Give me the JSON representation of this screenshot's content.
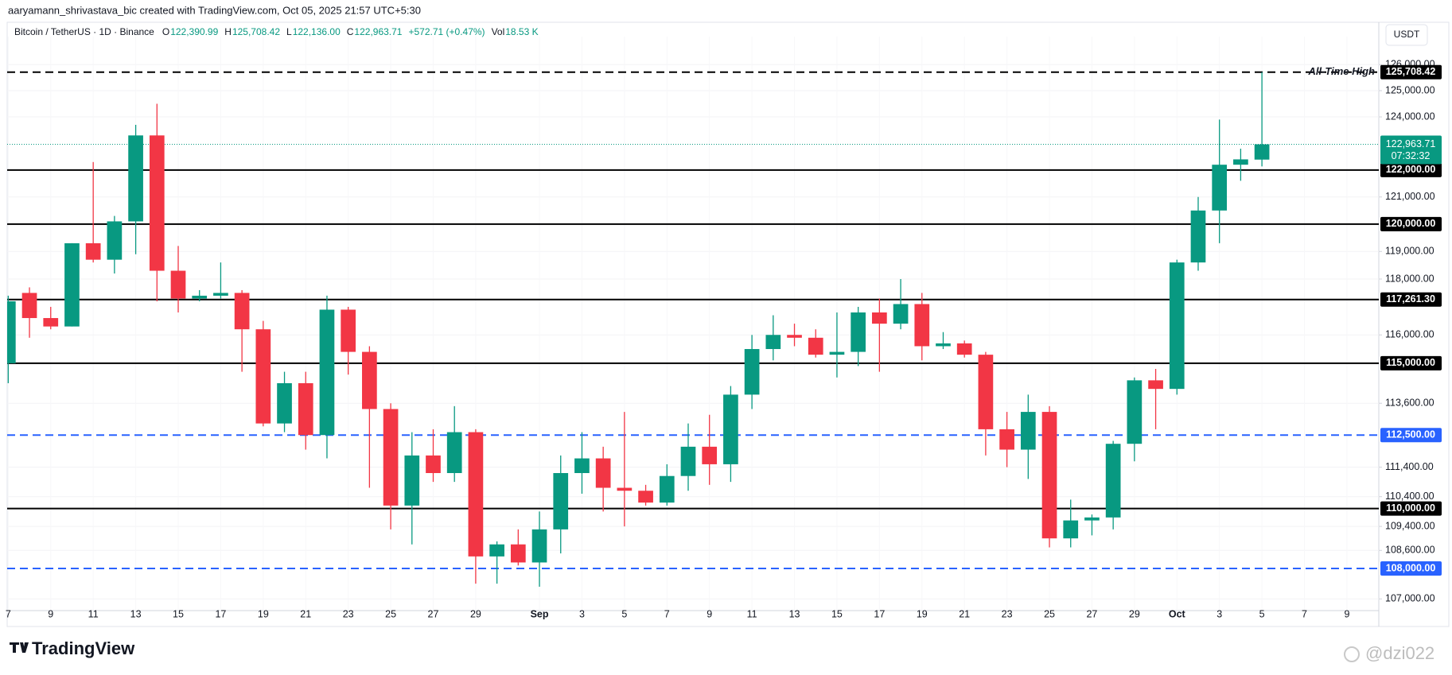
{
  "header": "aaryamann_shrivastava_bic created with TradingView.com, Oct 05, 2025 21:57 UTC+5:30",
  "logo": "TradingView",
  "watermark": "@dzi022",
  "chart_data": {
    "type": "candlestick",
    "title": "Bitcoin / TetherUS · 1D · Binance",
    "legend": [
      {
        "key": "O",
        "text": "122,390.99"
      },
      {
        "key": "H",
        "text": "125,708.42"
      },
      {
        "key": "L",
        "text": "122,136.00"
      },
      {
        "key": "C",
        "text": "122,963.71"
      },
      {
        "key": "",
        "text": "+572.71 (+0.47%)"
      },
      {
        "key": "Vol",
        "text": "18.53 K"
      }
    ],
    "currency": "USDT",
    "up_color": "#089981",
    "down_color": "#f23645",
    "open": [
      115000,
      117500,
      116600,
      116300,
      119300,
      118700,
      120100,
      123300,
      118300,
      117300,
      117400,
      117500,
      116200,
      112900,
      114300,
      112500,
      116900,
      115400,
      113400,
      110100,
      111800,
      111200,
      112600,
      108400,
      108800,
      108200,
      109300,
      111200,
      111700,
      110700,
      110600,
      110200,
      111100,
      112100,
      111500,
      113900,
      115500,
      116000,
      115900,
      115300,
      115400,
      116800,
      116400,
      117100,
      115600,
      115700,
      115300,
      112700,
      112000,
      113300,
      109000,
      109600,
      109700,
      112200,
      114400,
      114100,
      118600,
      120500,
      122200,
      122390.99
    ],
    "high": [
      117400,
      117700,
      117000,
      119300,
      122300,
      120300,
      123700,
      124500,
      119200,
      117600,
      118600,
      117600,
      116500,
      114700,
      114700,
      117400,
      117000,
      115600,
      113600,
      112600,
      112700,
      113500,
      112700,
      108900,
      109300,
      109900,
      111800,
      112600,
      112100,
      113300,
      110800,
      111500,
      112900,
      113200,
      114200,
      116000,
      116700,
      116400,
      116200,
      116800,
      117000,
      117300,
      118000,
      117500,
      116100,
      115800,
      115400,
      113300,
      113900,
      113500,
      110300,
      109800,
      112300,
      114500,
      114800,
      118700,
      121000,
      123900,
      122800,
      125708.42
    ],
    "low": [
      114300,
      115900,
      116200,
      116300,
      118600,
      118200,
      118900,
      117200,
      116800,
      117200,
      117300,
      114700,
      112800,
      112600,
      112000,
      111700,
      114600,
      110700,
      109300,
      108800,
      110900,
      110900,
      107500,
      107500,
      108100,
      107400,
      108500,
      110500,
      109900,
      109400,
      110100,
      110100,
      110600,
      110800,
      110900,
      113400,
      115100,
      115600,
      115200,
      114500,
      114900,
      114700,
      116200,
      115100,
      115500,
      115200,
      111800,
      111400,
      111000,
      108700,
      108700,
      109100,
      109300,
      111600,
      112700,
      113900,
      118300,
      119300,
      121600,
      122136
    ],
    "close": [
      117200,
      116600,
      116300,
      119300,
      118700,
      120100,
      123300,
      118300,
      117300,
      117400,
      117500,
      116200,
      112900,
      114300,
      112500,
      116900,
      115400,
      113400,
      110100,
      111800,
      111200,
      112600,
      108400,
      108800,
      108200,
      109300,
      111200,
      111700,
      110700,
      110600,
      110200,
      111100,
      112100,
      111500,
      113900,
      115500,
      116000,
      115900,
      115300,
      115400,
      116800,
      116400,
      117100,
      115600,
      115700,
      115300,
      112700,
      112000,
      113300,
      109000,
      109600,
      109700,
      112200,
      114400,
      114100,
      118600,
      120500,
      122200,
      122400,
      122963.71
    ],
    "xlim": [
      -0.05,
      64.5
    ],
    "xticks": [
      {
        "value": 0,
        "label": "7"
      },
      {
        "value": 2,
        "label": "9"
      },
      {
        "value": 4,
        "label": "11"
      },
      {
        "value": 6,
        "label": "13"
      },
      {
        "value": 8,
        "label": "15"
      },
      {
        "value": 10,
        "label": "17"
      },
      {
        "value": 12,
        "label": "19"
      },
      {
        "value": 14,
        "label": "21"
      },
      {
        "value": 16,
        "label": "23"
      },
      {
        "value": 18,
        "label": "25"
      },
      {
        "value": 20,
        "label": "27"
      },
      {
        "value": 22,
        "label": "29"
      },
      {
        "value": 25,
        "label": "Sep"
      },
      {
        "value": 27,
        "label": "3"
      },
      {
        "value": 29,
        "label": "5"
      },
      {
        "value": 31,
        "label": "7"
      },
      {
        "value": 33,
        "label": "9"
      },
      {
        "value": 35,
        "label": "11"
      },
      {
        "value": 37,
        "label": "13"
      },
      {
        "value": 39,
        "label": "15"
      },
      {
        "value": 41,
        "label": "17"
      },
      {
        "value": 43,
        "label": "19"
      },
      {
        "value": 45,
        "label": "21"
      },
      {
        "value": 47,
        "label": "23"
      },
      {
        "value": 49,
        "label": "25"
      },
      {
        "value": 51,
        "label": "27"
      },
      {
        "value": 53,
        "label": "29"
      },
      {
        "value": 55,
        "label": "Oct"
      },
      {
        "value": 57,
        "label": "3"
      },
      {
        "value": 59,
        "label": "5"
      },
      {
        "value": 61,
        "label": "7"
      },
      {
        "value": 63,
        "label": "9"
      }
    ],
    "log_scale": true,
    "ylim": [
      106800,
      126900
    ],
    "yticks": [
      {
        "value": 126000,
        "label": "126,000.00"
      },
      {
        "value": 125000,
        "label": "125,000.00"
      },
      {
        "value": 124000,
        "label": "124,000.00"
      },
      {
        "value": 121000,
        "label": "121,000.00"
      },
      {
        "value": 119000,
        "label": "119,000.00"
      },
      {
        "value": 118000,
        "label": "118,000.00"
      },
      {
        "value": 116000,
        "label": "116,000.00"
      },
      {
        "value": 113600,
        "label": "113,600.00"
      },
      {
        "value": 111400,
        "label": "111,400.00"
      },
      {
        "value": 110400,
        "label": "110,400.00"
      },
      {
        "value": 109400,
        "label": "109,400.00"
      },
      {
        "value": 108600,
        "label": "108,600.00"
      },
      {
        "value": 107000,
        "label": "107,000.00"
      }
    ],
    "grid": true,
    "levels": [
      {
        "value": 125708.42,
        "label": "125,708.42",
        "style": "dashed",
        "color": "#000000",
        "annotation": "All-Time High"
      },
      {
        "value": 122000,
        "label": "122,000.00",
        "style": "solid",
        "color": "#000000"
      },
      {
        "value": 120000,
        "label": "120,000.00",
        "style": "solid",
        "color": "#000000"
      },
      {
        "value": 117261.3,
        "label": "117,261.30",
        "style": "solid",
        "color": "#000000"
      },
      {
        "value": 115000,
        "label": "115,000.00",
        "style": "solid",
        "color": "#000000"
      },
      {
        "value": 112500,
        "label": "112,500.00",
        "style": "dashed",
        "color": "#2962ff"
      },
      {
        "value": 110000,
        "label": "110,000.00",
        "style": "solid",
        "color": "#000000"
      },
      {
        "value": 108000,
        "label": "108,000.00",
        "style": "dashed",
        "color": "#2962ff"
      }
    ],
    "last_price": {
      "value": 122963.71,
      "label": "122,963.71",
      "countdown": "07:32:32",
      "color": "#089981"
    }
  }
}
